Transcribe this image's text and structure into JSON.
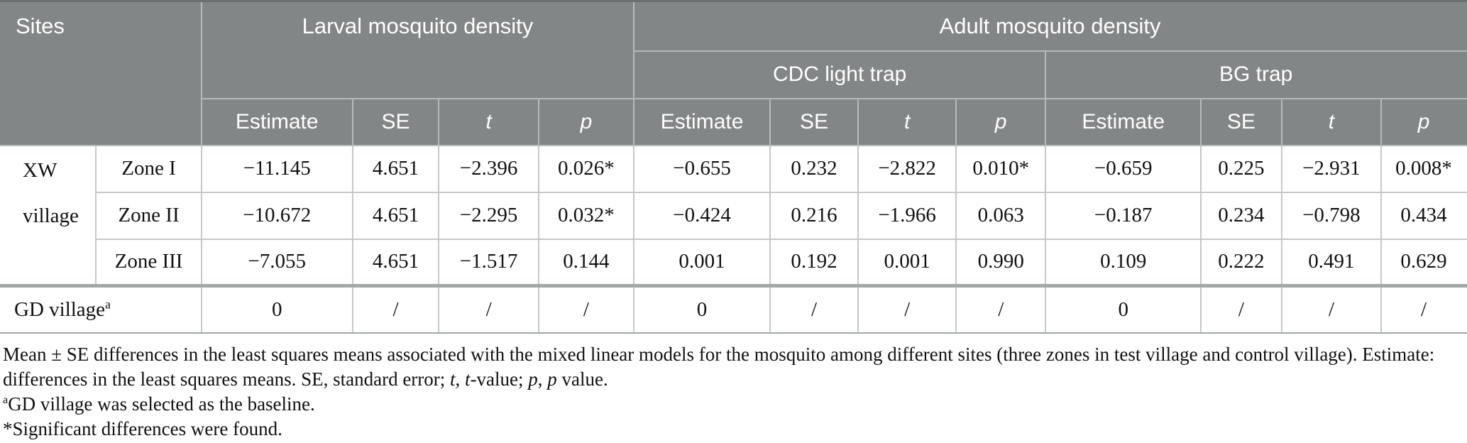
{
  "colors": {
    "header_bg": "#828686",
    "header_text": "#ffffff",
    "body_text": "#111111"
  },
  "table": {
    "header": {
      "sites": "Sites",
      "larval": "Larval mosquito density",
      "adult": "Adult mosquito density",
      "cdc": "CDC light trap",
      "bg": "BG trap",
      "metric_labels": [
        "Estimate",
        "SE",
        "t",
        "p"
      ]
    },
    "rows": [
      {
        "site": "XW village",
        "zone": "Zone I",
        "values": [
          "−11.145",
          "4.651",
          "−2.396",
          "0.026*",
          "−0.655",
          "0.232",
          "−2.822",
          "0.010*",
          "−0.659",
          "0.225",
          "−2.931",
          "0.008*"
        ]
      },
      {
        "zone": "Zone II",
        "values": [
          "−10.672",
          "4.651",
          "−2.295",
          "0.032*",
          "−0.424",
          "0.216",
          "−1.966",
          "0.063",
          "−0.187",
          "0.234",
          "−0.798",
          "0.434"
        ]
      },
      {
        "zone": "Zone III",
        "values": [
          "−7.055",
          "4.651",
          "−1.517",
          "0.144",
          "0.001",
          "0.192",
          "0.001",
          "0.990",
          "0.109",
          "0.222",
          "0.491",
          "0.629"
        ]
      },
      {
        "site": "GD village",
        "site_sup": "a",
        "values": [
          "0",
          "/",
          "/",
          "/",
          "0",
          "/",
          "/",
          "/",
          "0",
          "/",
          "/",
          "/"
        ]
      }
    ]
  },
  "footnotes": {
    "line1": "Mean ± SE differences in the least squares means associated with the mixed linear models for the mosquito among different sites (three zones in test village and control village). Estimate:",
    "line2_segments": [
      "differences in the least squares means. SE, standard error; ",
      "t",
      ", ",
      "t",
      "-value; ",
      "p",
      ", ",
      "p",
      " value."
    ],
    "line3_sup": "a",
    "line3": "GD village was selected as the baseline.",
    "line4": "*Significant differences were found."
  }
}
